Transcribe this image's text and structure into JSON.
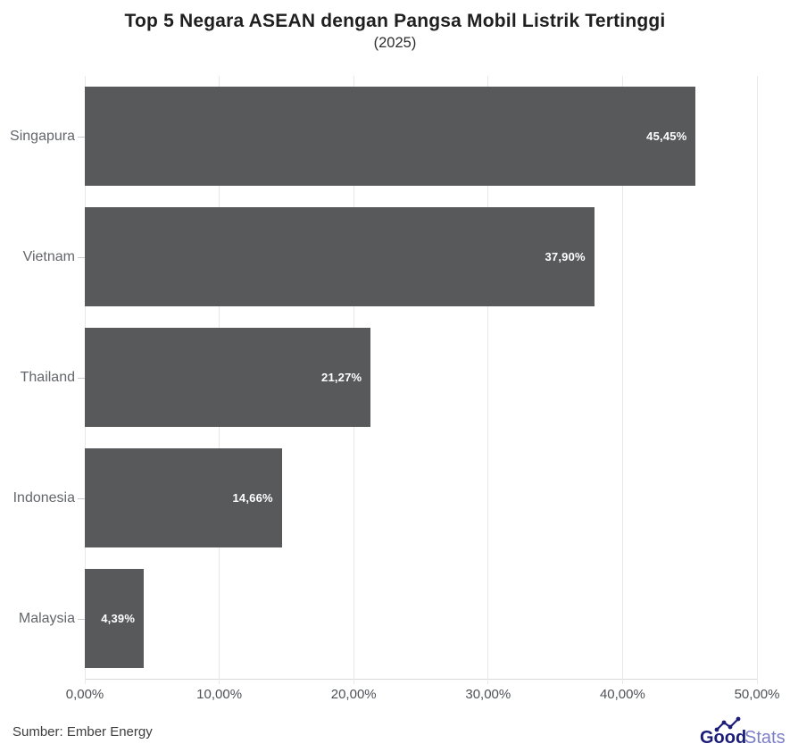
{
  "chart_data": {
    "type": "bar",
    "orientation": "horizontal",
    "title": "Top 5 Negara ASEAN dengan Pangsa Mobil Listrik Tertinggi",
    "subtitle": "(2025)",
    "categories": [
      "Singapura",
      "Vietnam",
      "Thailand",
      "Indonesia",
      "Malaysia"
    ],
    "values": [
      45.45,
      37.9,
      21.27,
      14.66,
      4.39
    ],
    "value_labels": [
      "45,45%",
      "37,90%",
      "21,27%",
      "14,66%",
      "4,39%"
    ],
    "xlabel": "",
    "ylabel": "",
    "xlim": [
      0,
      50
    ],
    "x_ticks": [
      {
        "value": 0,
        "label": "0,00%"
      },
      {
        "value": 10,
        "label": "10,00%"
      },
      {
        "value": 20,
        "label": "20,00%"
      },
      {
        "value": 30,
        "label": "30,00%"
      },
      {
        "value": 40,
        "label": "40,00%"
      },
      {
        "value": 50,
        "label": "50,00%"
      }
    ],
    "grid": "vertical",
    "legend": "none",
    "bar_color": "#58595b",
    "value_label_color": "#ffffff"
  },
  "footer": {
    "source": "Sumber: Ember Energy",
    "logo": {
      "bold_text": "Good",
      "light_text": "Stats",
      "bold_color": "#1b1c77",
      "light_color": "#7b7fc7"
    }
  }
}
